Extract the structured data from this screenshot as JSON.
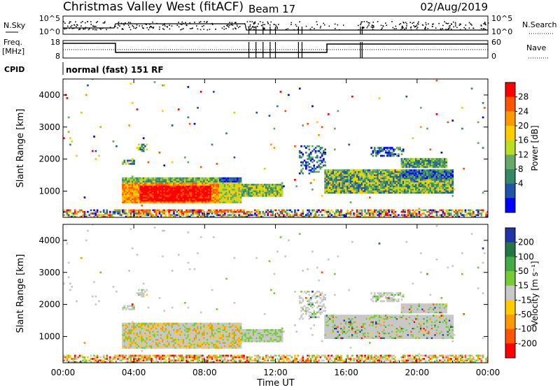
{
  "header": {
    "site": "Christmas Valley West (fitACF)",
    "beam": "Beam 17",
    "date": "02/Aug/2019"
  },
  "param_panels": {
    "nsky_label": "N.Sky",
    "nsky_ticks": [
      "10^5",
      "10^0"
    ],
    "nsearch_label": "N.Search",
    "nsearch_ticks": [
      "10^5",
      "10^0"
    ],
    "freq_label": "Freq.",
    "freq_unit": "[MHz]",
    "freq_ticks": [
      "18",
      "8"
    ],
    "nave_label": "Nave",
    "nave_ticks": [
      "60",
      "0"
    ],
    "cpid_label": "CPID",
    "cpid_value": "normal (fast) 151 RF"
  },
  "chart_data": [
    {
      "type": "heatmap",
      "title": "",
      "ylabel": "Slant Range [km]",
      "xlabel": "",
      "xlim": [
        "00:00",
        "24:00"
      ],
      "ylim": [
        180,
        4500
      ],
      "yticks": [
        1000,
        2000,
        3000,
        4000
      ],
      "colorbar": {
        "label": "Power [dB]",
        "ticks": [
          28,
          24,
          20,
          16,
          12,
          8,
          4
        ],
        "colors": [
          "#ff0000",
          "#ff5500",
          "#ff9900",
          "#ffcc00",
          "#bbdd22",
          "#66aa66",
          "#338866",
          "#2255aa",
          "#0000ff"
        ]
      },
      "regions": [
        {
          "t": [
            3.3,
            10.0
          ],
          "r": [
            600,
            1400
          ],
          "level": "high"
        },
        {
          "t": [
            4.3,
            8.0
          ],
          "r": [
            700,
            1100
          ],
          "level": "very high"
        },
        {
          "t": [
            10.0,
            12.3
          ],
          "r": [
            800,
            1200
          ],
          "level": "medium"
        },
        {
          "t": [
            13.3,
            14.8
          ],
          "r": [
            1600,
            2400
          ],
          "level": "low"
        },
        {
          "t": [
            14.7,
            22.0
          ],
          "r": [
            900,
            1700
          ],
          "level": "medium"
        },
        {
          "t": [
            19.0,
            21.5
          ],
          "r": [
            1700,
            2000
          ],
          "level": "medium"
        },
        {
          "t": [
            0.0,
            24.0
          ],
          "r": [
            180,
            400
          ],
          "level": "mixed"
        }
      ]
    },
    {
      "type": "heatmap",
      "title": "",
      "ylabel": "Slant Range [km]",
      "xlabel": "Time UT",
      "xlim": [
        "00:00",
        "24:00"
      ],
      "xticks": [
        "00:00",
        "04:00",
        "08:00",
        "12:00",
        "16:00",
        "20:00",
        "00:00"
      ],
      "ylim": [
        180,
        4500
      ],
      "yticks": [
        1000,
        2000,
        3000,
        4000
      ],
      "colorbar": {
        "label": "Velocity [m s⁻¹]",
        "ticks": [
          200,
          100,
          50,
          15,
          -15,
          -50,
          -100,
          -200
        ],
        "colors": [
          "#2233aa",
          "#227744",
          "#44aa44",
          "#77cc33",
          "#c8c8c8",
          "#ffcc00",
          "#ff9900",
          "#ff5500",
          "#ff0000"
        ]
      },
      "regions": [
        {
          "t": [
            3.3,
            10.0
          ],
          "r": [
            600,
            1400
          ],
          "velocity": "mostly near 0 with negative patches"
        },
        {
          "t": [
            10.0,
            12.3
          ],
          "r": [
            800,
            1200
          ],
          "velocity": "near 0 with positive patches"
        },
        {
          "t": [
            14.7,
            22.0
          ],
          "r": [
            900,
            1700
          ],
          "velocity": "near 0"
        },
        {
          "t": [
            19.0,
            21.5
          ],
          "r": [
            1700,
            2000
          ],
          "velocity": "near 0"
        },
        {
          "t": [
            0.0,
            24.0
          ],
          "r": [
            180,
            400
          ],
          "velocity": "negative"
        }
      ]
    }
  ]
}
